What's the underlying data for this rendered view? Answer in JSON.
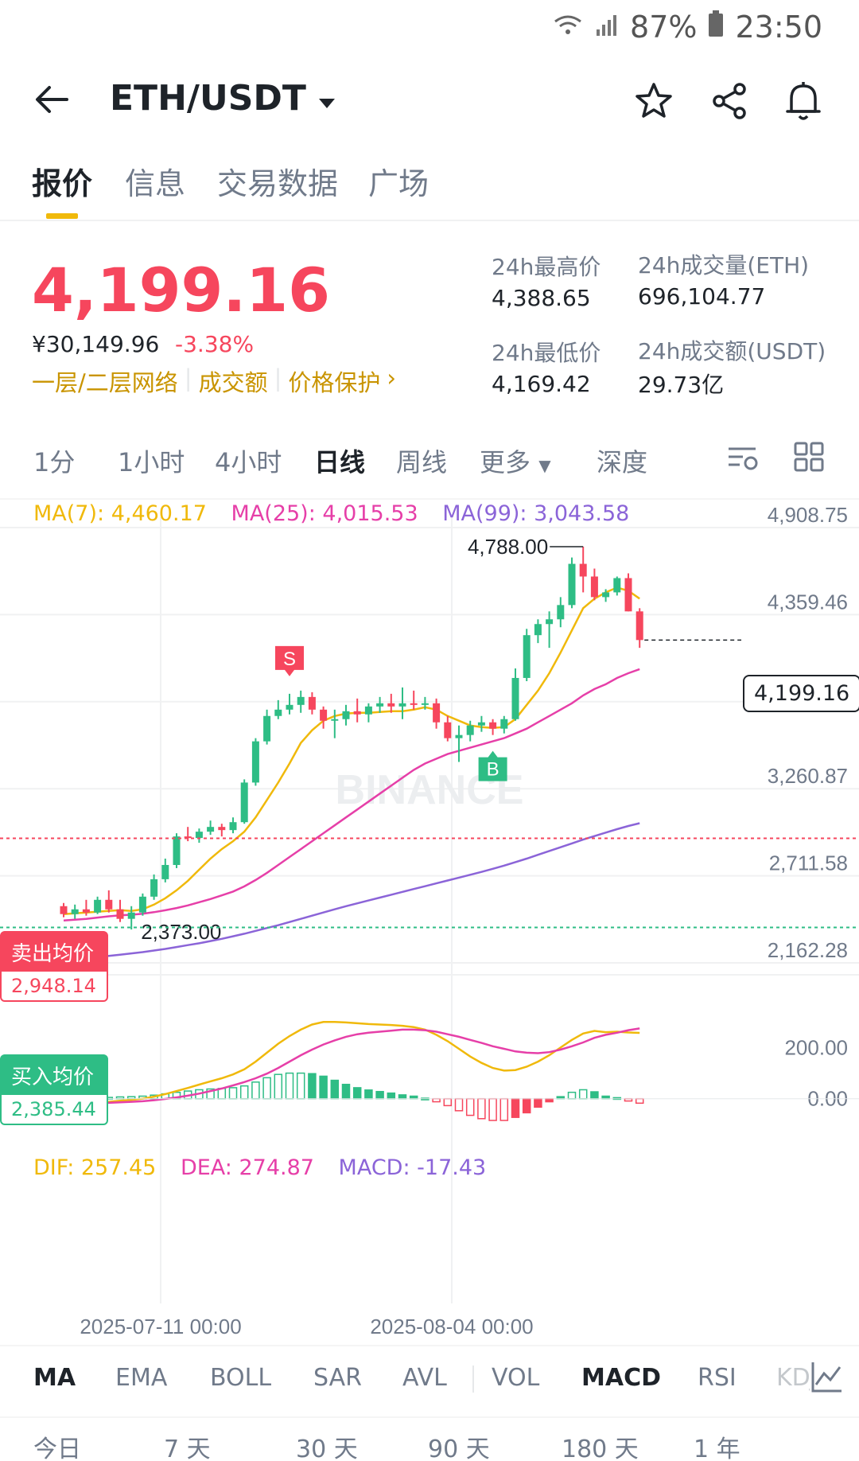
{
  "status": {
    "battery": "87%",
    "time": "23:50"
  },
  "header": {
    "pair": "ETH/USDT"
  },
  "tabs": [
    "报价",
    "信息",
    "交易数据",
    "广场"
  ],
  "ticker": {
    "price": "4,199.16",
    "cny": "¥30,149.96",
    "change": "-3.38%",
    "tags": [
      "一层/二层网络",
      "成交额",
      "价格保护"
    ],
    "high_label": "24h最高价",
    "high": "4,388.65",
    "low_label": "24h最低价",
    "low": "4,169.42",
    "vol_label": "24h成交量(ETH)",
    "vol": "696,104.77",
    "amt_label": "24h成交额(USDT)",
    "amt": "29.73亿"
  },
  "intervals": [
    "1分",
    "1小时",
    "4小时",
    "日线",
    "周线",
    "更多",
    "深度"
  ],
  "ma_legend": {
    "ma7": "MA(7): 4,460.17",
    "ma25": "MA(25): 4,015.53",
    "ma99": "MA(99): 3,043.58"
  },
  "macd_legend": {
    "dif": "DIF: 257.45",
    "dea": "DEA: 274.87",
    "macd": "MACD: -17.43"
  },
  "markers": {
    "high_label": "4,788.00",
    "low_label": "2,373.00",
    "current": "4,199.16",
    "sell": "S",
    "buy": "B",
    "watermark": "BINANCE"
  },
  "avg": {
    "sell_label": "卖出均价",
    "sell": "2,948.14",
    "buy_label": "买入均价",
    "buy": "2,385.44"
  },
  "indicators": [
    "MA",
    "EMA",
    "BOLL",
    "SAR",
    "AVL",
    "VOL",
    "MACD",
    "RSI",
    "KDJ"
  ],
  "periods": [
    "今日",
    "7 天",
    "30 天",
    "90 天",
    "180 天",
    "1 年"
  ],
  "chart_data": {
    "type": "candlestick",
    "y_ticks": [
      "4,908.75",
      "4,359.46",
      "3,810.16",
      "3,260.87",
      "2,711.58",
      "2,162.28"
    ],
    "y_range": [
      2162.28,
      4908.75
    ],
    "macd_ticks": [
      "200.00",
      "0.00"
    ],
    "x_ticks": [
      "2025-07-11 00:00",
      "2025-08-04 00:00"
    ],
    "candles": [
      [
        2520,
        2540,
        2450,
        2470
      ],
      [
        2470,
        2530,
        2440,
        2500
      ],
      [
        2500,
        2560,
        2460,
        2480
      ],
      [
        2480,
        2580,
        2470,
        2560
      ],
      [
        2560,
        2620,
        2480,
        2500
      ],
      [
        2500,
        2560,
        2420,
        2440
      ],
      [
        2440,
        2520,
        2373,
        2480
      ],
      [
        2480,
        2600,
        2460,
        2580
      ],
      [
        2580,
        2720,
        2560,
        2690
      ],
      [
        2690,
        2820,
        2670,
        2780
      ],
      [
        2780,
        2980,
        2760,
        2960
      ],
      [
        2960,
        3020,
        2930,
        2950
      ],
      [
        2950,
        3010,
        2920,
        2990
      ],
      [
        2990,
        3060,
        2970,
        3020
      ],
      [
        3020,
        3040,
        2960,
        3000
      ],
      [
        3000,
        3080,
        2980,
        3050
      ],
      [
        3050,
        3320,
        3040,
        3300
      ],
      [
        3300,
        3580,
        3280,
        3560
      ],
      [
        3560,
        3760,
        3540,
        3720
      ],
      [
        3720,
        3820,
        3700,
        3760
      ],
      [
        3760,
        3860,
        3730,
        3790
      ],
      [
        3790,
        3880,
        3740,
        3840
      ],
      [
        3840,
        3870,
        3730,
        3760
      ],
      [
        3760,
        3780,
        3640,
        3690
      ],
      [
        3690,
        3760,
        3580,
        3700
      ],
      [
        3700,
        3790,
        3660,
        3750
      ],
      [
        3750,
        3830,
        3680,
        3730
      ],
      [
        3730,
        3800,
        3680,
        3780
      ],
      [
        3780,
        3840,
        3740,
        3800
      ],
      [
        3800,
        3860,
        3740,
        3780
      ],
      [
        3780,
        3900,
        3700,
        3800
      ],
      [
        3800,
        3880,
        3760,
        3790
      ],
      [
        3790,
        3840,
        3760,
        3800
      ],
      [
        3800,
        3830,
        3640,
        3680
      ],
      [
        3680,
        3720,
        3560,
        3580
      ],
      [
        3580,
        3660,
        3430,
        3600
      ],
      [
        3600,
        3690,
        3560,
        3660
      ],
      [
        3660,
        3720,
        3620,
        3680
      ],
      [
        3680,
        3700,
        3600,
        3640
      ],
      [
        3640,
        3720,
        3610,
        3700
      ],
      [
        3700,
        4020,
        3690,
        3960
      ],
      [
        3960,
        4270,
        3940,
        4230
      ],
      [
        4230,
        4330,
        4180,
        4300
      ],
      [
        4300,
        4380,
        4150,
        4330
      ],
      [
        4330,
        4470,
        4280,
        4420
      ],
      [
        4420,
        4720,
        4400,
        4680
      ],
      [
        4680,
        4788,
        4500,
        4600
      ],
      [
        4600,
        4650,
        4450,
        4470
      ],
      [
        4470,
        4520,
        4440,
        4500
      ],
      [
        4500,
        4600,
        4480,
        4590
      ],
      [
        4590,
        4620,
        4380,
        4380
      ],
      [
        4380,
        4400,
        4150,
        4199.16
      ]
    ],
    "ma7": [
      2470,
      2475,
      2480,
      2485,
      2490,
      2495,
      2490,
      2500,
      2530,
      2570,
      2620,
      2680,
      2750,
      2820,
      2880,
      2930,
      2990,
      3080,
      3190,
      3300,
      3420,
      3550,
      3630,
      3690,
      3720,
      3735,
      3740,
      3740,
      3745,
      3750,
      3750,
      3760,
      3775,
      3760,
      3720,
      3690,
      3660,
      3650,
      3645,
      3650,
      3700,
      3790,
      3880,
      3990,
      4120,
      4260,
      4400,
      4460,
      4500,
      4530,
      4510,
      4460.17
    ],
    "ma25": [
      2430,
      2435,
      2440,
      2448,
      2456,
      2462,
      2466,
      2472,
      2482,
      2494,
      2508,
      2525,
      2545,
      2565,
      2588,
      2612,
      2645,
      2685,
      2730,
      2780,
      2830,
      2880,
      2930,
      2980,
      3030,
      3080,
      3130,
      3180,
      3230,
      3280,
      3330,
      3380,
      3420,
      3450,
      3480,
      3500,
      3520,
      3540,
      3560,
      3580,
      3610,
      3640,
      3680,
      3720,
      3760,
      3800,
      3850,
      3890,
      3920,
      3960,
      3990,
      4015.53
    ],
    "ma99": [
      2180,
      2186,
      2192,
      2199,
      2206,
      2214,
      2222,
      2230,
      2240,
      2250,
      2262,
      2274,
      2286,
      2300,
      2314,
      2330,
      2346,
      2364,
      2382,
      2400,
      2420,
      2440,
      2460,
      2480,
      2500,
      2520,
      2538,
      2556,
      2574,
      2592,
      2610,
      2628,
      2646,
      2664,
      2682,
      2700,
      2718,
      2736,
      2756,
      2776,
      2798,
      2820,
      2844,
      2868,
      2892,
      2916,
      2940,
      2962,
      2984,
      3006,
      3026,
      3043.58
    ],
    "macd_range": [
      -60,
      360
    ],
    "dif": [
      -20,
      -18,
      -17,
      -15,
      -12,
      -8,
      -5,
      0,
      8,
      18,
      30,
      42,
      55,
      68,
      80,
      95,
      115,
      145,
      180,
      215,
      245,
      270,
      290,
      300,
      300,
      298,
      295,
      292,
      290,
      288,
      285,
      280,
      270,
      250,
      225,
      195,
      165,
      140,
      120,
      110,
      112,
      125,
      145,
      170,
      200,
      230,
      255,
      265,
      260,
      262,
      259,
      257.45
    ],
    "dea": [
      -20,
      -19,
      -18,
      -17,
      -16,
      -14,
      -12,
      -10,
      -6,
      -1,
      5,
      12,
      20,
      30,
      40,
      52,
      65,
      80,
      98,
      120,
      145,
      170,
      192,
      212,
      228,
      242,
      252,
      258,
      262,
      266,
      270,
      270,
      268,
      262,
      252,
      242,
      230,
      218,
      205,
      195,
      185,
      180,
      178,
      182,
      192,
      205,
      220,
      238,
      250,
      258,
      268,
      274.87
    ],
    "hist": [
      0,
      2,
      2,
      3,
      5,
      7,
      8,
      10,
      14,
      19,
      25,
      30,
      35,
      38,
      40,
      43,
      50,
      65,
      82,
      95,
      100,
      100,
      98,
      88,
      72,
      56,
      43,
      34,
      28,
      22,
      15,
      10,
      2,
      -12,
      -27,
      -47,
      -65,
      -78,
      -85,
      -85,
      -73,
      -55,
      -33,
      -12,
      8,
      25,
      35,
      27,
      10,
      4,
      -9,
      -17.43
    ]
  }
}
